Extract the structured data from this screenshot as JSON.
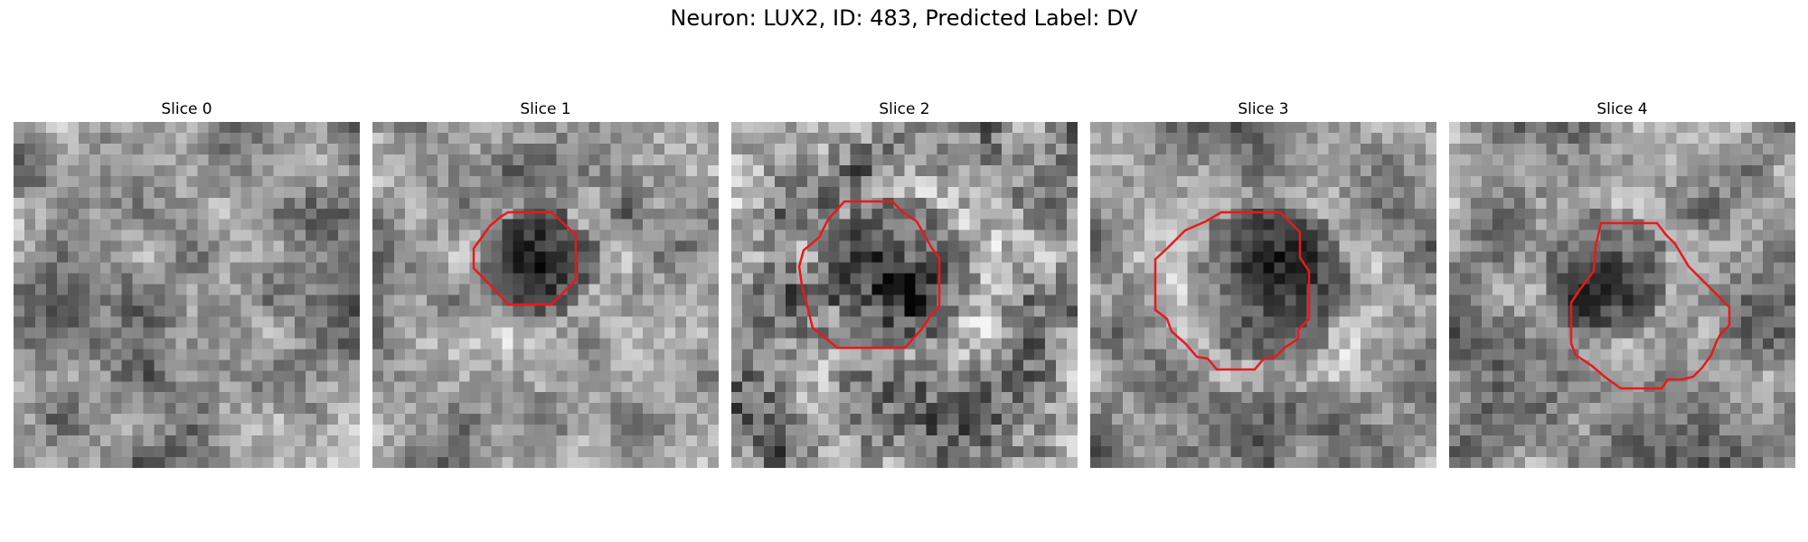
{
  "figure": {
    "title": "Neuron: LUX2, ID: 483, Predicted Label: DV"
  },
  "contour_color": "#e8191c",
  "grid_size": 32,
  "slices": [
    {
      "title": "Slice 0",
      "has_contour": false
    },
    {
      "title": "Slice 1",
      "has_contour": true
    },
    {
      "title": "Slice 2",
      "has_contour": true
    },
    {
      "title": "Slice 3",
      "has_contour": true
    },
    {
      "title": "Slice 4",
      "has_contour": true
    }
  ]
}
